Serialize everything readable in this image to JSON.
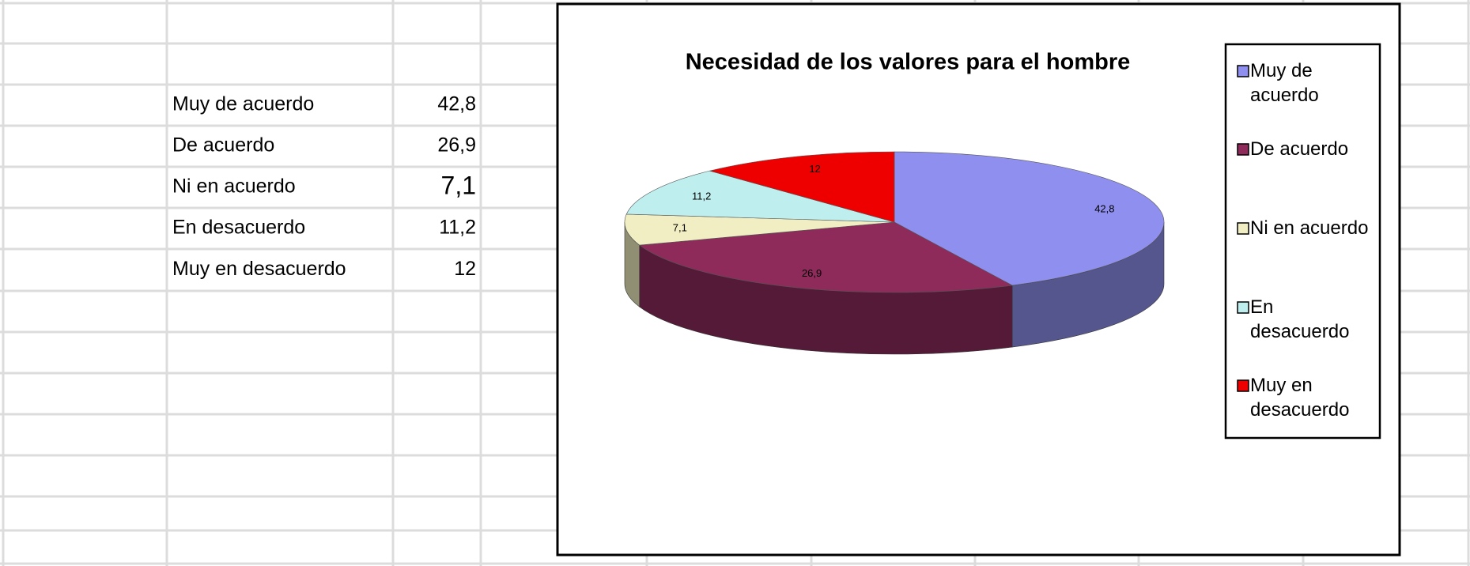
{
  "table": {
    "rows": [
      [
        "Muy de acuerdo",
        "42,8"
      ],
      [
        "De acuerdo",
        "26,9"
      ],
      [
        "Ni en acuerdo",
        "7,1"
      ],
      [
        "En desacuerdo",
        "11,2"
      ],
      [
        "Muy en desacuerdo",
        "12"
      ]
    ]
  },
  "chart_data": {
    "type": "pie",
    "title": "Necesidad de los valores para el hombre",
    "categories": [
      "Muy de acuerdo",
      "De acuerdo",
      "Ni en acuerdo",
      "En desacuerdo",
      "Muy en desacuerdo"
    ],
    "values": [
      42.8,
      26.9,
      7.1,
      11.2,
      12
    ],
    "value_labels": [
      "42,8",
      "26,9",
      "7,1",
      "11,2",
      "12"
    ],
    "colors": [
      "#8f8fef",
      "#8e2b5b",
      "#f0eec2",
      "#bfeeee",
      "#ee0000"
    ],
    "legend": "right"
  }
}
